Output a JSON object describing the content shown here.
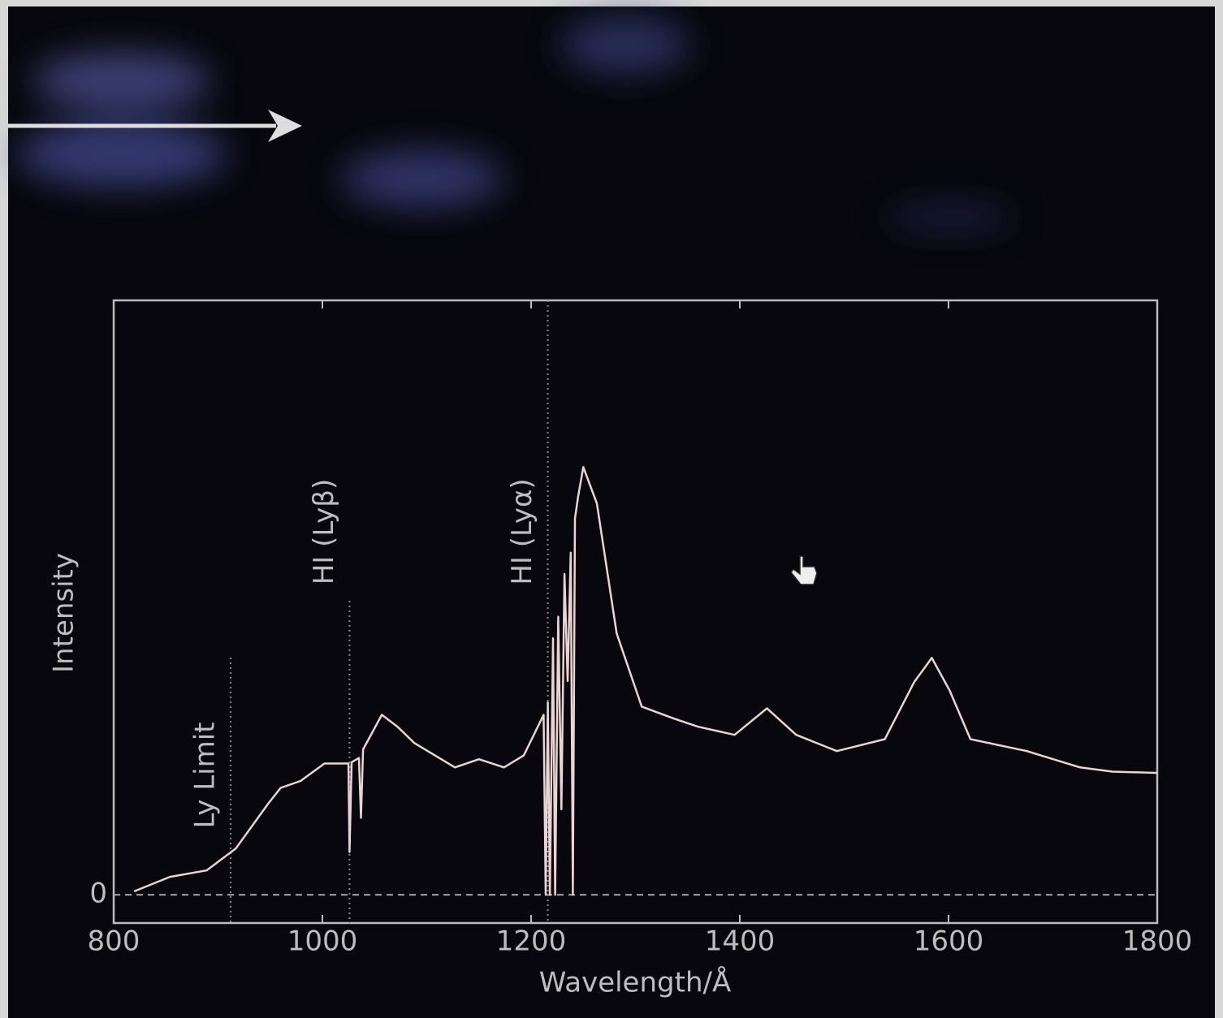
{
  "chart_data": {
    "type": "line",
    "x_label": "Wavelength/Å",
    "y_label": "Intensity",
    "x": [
      819.5,
      854,
      889,
      917,
      948,
      960,
      979,
      1002,
      1025,
      1026,
      1028,
      1035,
      1037,
      1039,
      1057,
      1072,
      1088,
      1127,
      1150,
      1174,
      1193,
      1212,
      1214,
      1216,
      1218,
      1221,
      1223,
      1226,
      1229,
      1232,
      1235,
      1238,
      1240,
      1242,
      1245,
      1250,
      1263,
      1282,
      1306,
      1337,
      1360,
      1395,
      1426,
      1454,
      1493,
      1539,
      1567,
      1584,
      1601,
      1621,
      1675,
      1726,
      1757,
      1800
    ],
    "values": [
      0.008,
      0.042,
      0.057,
      0.108,
      0.213,
      0.25,
      0.266,
      0.307,
      0.307,
      0.1,
      0.31,
      0.32,
      0.18,
      0.34,
      0.421,
      0.393,
      0.355,
      0.298,
      0.317,
      0.298,
      0.326,
      0.421,
      0.0,
      0.45,
      0.0,
      0.6,
      0.0,
      0.65,
      0.2,
      0.75,
      0.5,
      0.8,
      0.0,
      0.88,
      0.93,
      1.0,
      0.915,
      0.611,
      0.44,
      0.412,
      0.393,
      0.374,
      0.436,
      0.374,
      0.336,
      0.364,
      0.497,
      0.554,
      0.478,
      0.364,
      0.336,
      0.298,
      0.288,
      0.285
    ],
    "color": "#e9d3d3",
    "xlim": [
      800,
      1800
    ],
    "xticks": [
      800,
      1000,
      1200,
      1400,
      1600,
      1800
    ],
    "ylim": [
      -0.066,
      1.39
    ],
    "yticks": [
      0
    ],
    "annotations": [
      {
        "x": 912,
        "label": "Ly Limit"
      },
      {
        "x": 1026,
        "label": "HI (Lyβ)"
      },
      {
        "x": 1216,
        "label": "HI (Lyα)"
      }
    ]
  }
}
